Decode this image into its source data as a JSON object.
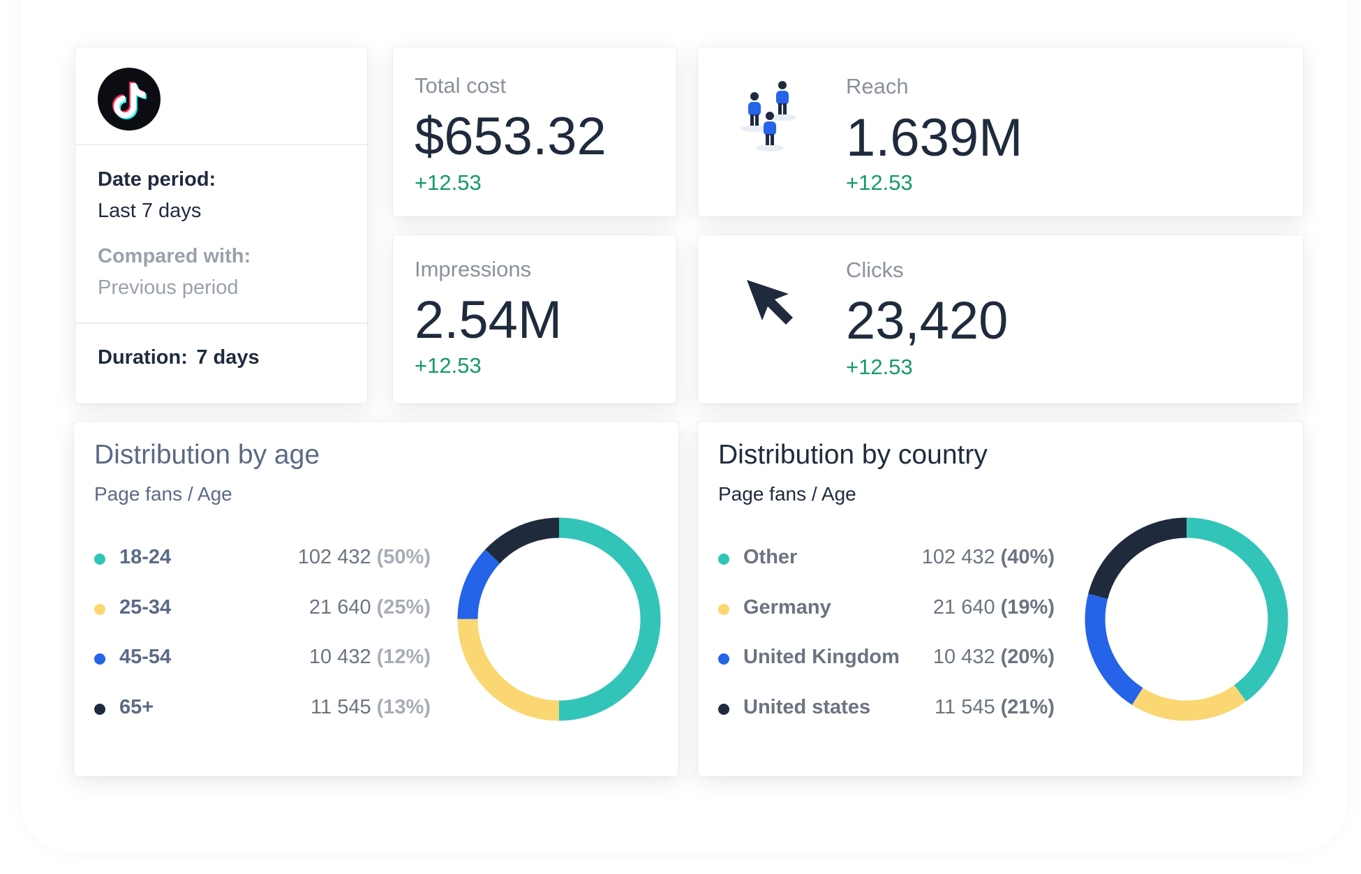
{
  "info": {
    "date_period_label": "Date period:",
    "date_period_value": "Last 7 days",
    "compared_label": "Compared with:",
    "compared_value": "Previous period",
    "duration_label": "Duration:",
    "duration_value": "7 days"
  },
  "kpis": {
    "total_cost": {
      "title": "Total cost",
      "value": "$653.32",
      "delta": "+12.53"
    },
    "reach": {
      "title": "Reach",
      "value": "1.639M",
      "delta": "+12.53"
    },
    "impressions": {
      "title": "Impressions",
      "value": "2.54M",
      "delta": "+12.53"
    },
    "clicks": {
      "title": "Clicks",
      "value": "23,420",
      "delta": "+12.53"
    }
  },
  "age": {
    "title": "Distribution by age",
    "subtitle": "Page fans / Age",
    "rows": [
      {
        "label": "18-24",
        "value": "102 432",
        "pct": "(50%)",
        "color": "#33c4b9"
      },
      {
        "label": "25-34",
        "value": "21 640",
        "pct": "(25%)",
        "color": "#fad772"
      },
      {
        "label": "45-54",
        "value": "10 432",
        "pct": "(12%)",
        "color": "#2563e8"
      },
      {
        "label": "65+",
        "value": "11 545",
        "pct": "(13%)",
        "color": "#1f2b3d"
      }
    ],
    "chart_data": {
      "type": "pie",
      "categories": [
        "18-24",
        "25-34",
        "45-54",
        "65+"
      ],
      "values": [
        50,
        25,
        12,
        13
      ]
    }
  },
  "country": {
    "title": "Distribution by country",
    "subtitle": "Page fans / Age",
    "rows": [
      {
        "label": "Other",
        "value": "102 432",
        "pct": "(40%)",
        "color": "#33c4b9"
      },
      {
        "label": "Germany",
        "value": "21 640",
        "pct": "(19%)",
        "color": "#fad772"
      },
      {
        "label": "United Kingdom",
        "value": "10 432",
        "pct": "(20%)",
        "color": "#2563e8"
      },
      {
        "label": "United states",
        "value": "11 545",
        "pct": "(21%)",
        "color": "#1f2b3d"
      }
    ],
    "chart_data": {
      "type": "pie",
      "categories": [
        "Other",
        "Germany",
        "United Kingdom",
        "United states"
      ],
      "values": [
        40,
        19,
        20,
        21
      ]
    }
  },
  "colors": {
    "teal": "#33c4b9",
    "yellow": "#fad772",
    "blue": "#2563e8",
    "navy": "#1f2b3d",
    "positive": "#129a6a"
  }
}
